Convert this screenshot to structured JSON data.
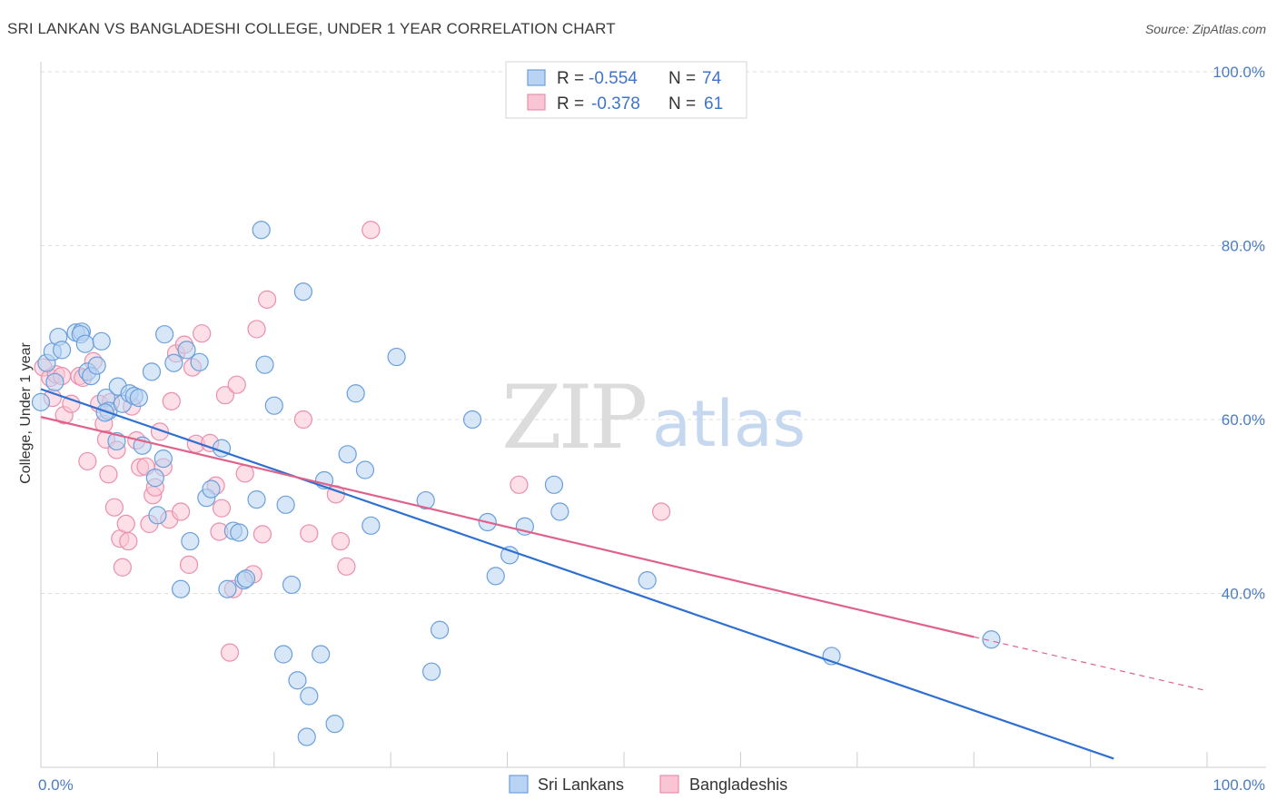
{
  "title": "SRI LANKAN VS BANGLADESHI COLLEGE, UNDER 1 YEAR CORRELATION CHART",
  "source": "Source: ZipAtlas.com",
  "watermark": {
    "zip": "ZIP",
    "atlas": "atlas"
  },
  "legend": {
    "r_label": "R =",
    "n_label": "N =",
    "items": [
      {
        "r": "-0.554",
        "n": "74"
      },
      {
        "r": "-0.378",
        "n": "61"
      }
    ]
  },
  "bottom_legend": [
    "Sri Lankans",
    "Bangladeshis"
  ],
  "colors": {
    "sri_fill": "#b8d3f3",
    "sri_stroke": "#6a9fdb",
    "sri_line": "#2f6fd1",
    "ban_fill": "#f9c4d3",
    "ban_stroke": "#eb8fac",
    "ban_line": "#e0628a",
    "grid": "#dddddd",
    "tick_text": "#4a7cc4"
  },
  "chart_data": {
    "type": "scatter",
    "xlabel": "",
    "ylabel": "College, Under 1 year",
    "xlim": [
      0,
      100
    ],
    "ylim": [
      20,
      100
    ],
    "x_ticks": [
      "0.0%",
      "100.0%"
    ],
    "y_ticks": [
      {
        "value": 100,
        "label": "100.0%"
      },
      {
        "value": 80,
        "label": "80.0%"
      },
      {
        "value": 60,
        "label": "60.0%"
      },
      {
        "value": 40,
        "label": "40.0%"
      }
    ],
    "grid": true,
    "legend_position": "top-center",
    "series": [
      {
        "name": "Sri Lankans",
        "r": -0.554,
        "n": 74,
        "trend": {
          "x0": 0,
          "y0": 63.5,
          "x1": 92,
          "y1": 21
        },
        "points": [
          [
            0,
            62
          ],
          [
            0.5,
            66.5
          ],
          [
            1,
            67.8
          ],
          [
            1.5,
            69.5
          ],
          [
            1.8,
            68
          ],
          [
            3,
            70
          ],
          [
            3.5,
            70.1
          ],
          [
            3.4,
            69.8
          ],
          [
            3.8,
            68.7
          ],
          [
            4,
            65.5
          ],
          [
            4.3,
            65
          ],
          [
            4.8,
            66.2
          ],
          [
            5.2,
            69
          ],
          [
            5.6,
            62.5
          ],
          [
            5.8,
            61
          ],
          [
            6.5,
            57.5
          ],
          [
            6.6,
            63.8
          ],
          [
            7,
            61.8
          ],
          [
            7.6,
            63
          ],
          [
            8,
            62.7
          ],
          [
            8.4,
            62.5
          ],
          [
            8.7,
            57
          ],
          [
            9.5,
            65.5
          ],
          [
            9.8,
            53.3
          ],
          [
            10,
            49
          ],
          [
            10.5,
            55.5
          ],
          [
            10.6,
            69.8
          ],
          [
            11.4,
            66.5
          ],
          [
            12,
            40.5
          ],
          [
            12.5,
            68
          ],
          [
            12.8,
            46
          ],
          [
            13.6,
            66.6
          ],
          [
            14.2,
            51
          ],
          [
            14.6,
            52
          ],
          [
            15.5,
            56.7
          ],
          [
            16,
            40.5
          ],
          [
            16.5,
            47.2
          ],
          [
            17,
            47
          ],
          [
            17.4,
            41.5
          ],
          [
            17.6,
            41.7
          ],
          [
            18.5,
            50.8
          ],
          [
            18.9,
            81.8
          ],
          [
            19.2,
            66.3
          ],
          [
            20,
            61.6
          ],
          [
            20.8,
            33
          ],
          [
            21,
            50.2
          ],
          [
            21.5,
            41
          ],
          [
            22,
            30
          ],
          [
            22.5,
            74.7
          ],
          [
            22.8,
            23.5
          ],
          [
            23,
            28.2
          ],
          [
            24,
            33
          ],
          [
            24.3,
            53
          ],
          [
            25.2,
            25
          ],
          [
            26.3,
            56
          ],
          [
            27,
            63
          ],
          [
            27.8,
            54.2
          ],
          [
            28.3,
            47.8
          ],
          [
            30.5,
            67.2
          ],
          [
            33,
            50.7
          ],
          [
            33.5,
            31
          ],
          [
            34.2,
            35.8
          ],
          [
            37,
            60
          ],
          [
            38.3,
            48.2
          ],
          [
            39,
            42
          ],
          [
            40.2,
            44.4
          ],
          [
            41.5,
            47.7
          ],
          [
            44,
            52.5
          ],
          [
            44.5,
            49.4
          ],
          [
            52,
            41.5
          ],
          [
            67.8,
            32.8
          ],
          [
            81.5,
            34.7
          ],
          [
            1.2,
            64.3
          ],
          [
            5.5,
            60.8
          ]
        ]
      },
      {
        "name": "Bangladeshis",
        "r": -0.378,
        "n": 61,
        "trend": {
          "x0": 0,
          "y0": 60.3,
          "x1": 80,
          "y1": 35,
          "dash_x1": 100,
          "dash_y1": 28.8
        },
        "points": [
          [
            0.2,
            66
          ],
          [
            0.8,
            64.8
          ],
          [
            1,
            62.5
          ],
          [
            1.3,
            65.2
          ],
          [
            1.8,
            65
          ],
          [
            2,
            60.5
          ],
          [
            2.6,
            61.8
          ],
          [
            3.3,
            65
          ],
          [
            3.6,
            64.8
          ],
          [
            4,
            55.2
          ],
          [
            4.5,
            66.7
          ],
          [
            5,
            61.8
          ],
          [
            5.4,
            59.5
          ],
          [
            5.6,
            57.7
          ],
          [
            5.8,
            53.7
          ],
          [
            6,
            62
          ],
          [
            6.3,
            49.9
          ],
          [
            6.5,
            56.5
          ],
          [
            6.8,
            46.3
          ],
          [
            7,
            43
          ],
          [
            7.3,
            48
          ],
          [
            7.5,
            46
          ],
          [
            7.8,
            61.5
          ],
          [
            8.2,
            57.6
          ],
          [
            8.5,
            54.5
          ],
          [
            9,
            54.6
          ],
          [
            9.3,
            48
          ],
          [
            9.6,
            51.3
          ],
          [
            9.8,
            52.2
          ],
          [
            10.2,
            58.6
          ],
          [
            10.5,
            54.5
          ],
          [
            11,
            48.5
          ],
          [
            11.2,
            62.1
          ],
          [
            11.6,
            67.6
          ],
          [
            12,
            49.4
          ],
          [
            12.3,
            68.6
          ],
          [
            12.7,
            43.3
          ],
          [
            13,
            66
          ],
          [
            13.3,
            57.2
          ],
          [
            13.8,
            69.9
          ],
          [
            14.5,
            57.3
          ],
          [
            15,
            52.4
          ],
          [
            15.3,
            47.1
          ],
          [
            15.5,
            49.8
          ],
          [
            15.8,
            62.8
          ],
          [
            16.2,
            33.2
          ],
          [
            16.5,
            40.5
          ],
          [
            16.8,
            64
          ],
          [
            17.5,
            53.8
          ],
          [
            18.2,
            42.2
          ],
          [
            18.5,
            70.4
          ],
          [
            19,
            46.8
          ],
          [
            19.4,
            73.8
          ],
          [
            22.5,
            60
          ],
          [
            23,
            46.9
          ],
          [
            25.3,
            51.4
          ],
          [
            25.7,
            46
          ],
          [
            26.2,
            43.1
          ],
          [
            28.3,
            81.8
          ],
          [
            41,
            52.5
          ],
          [
            53.2,
            49.4
          ]
        ]
      }
    ],
    "extra_points_note": ""
  }
}
